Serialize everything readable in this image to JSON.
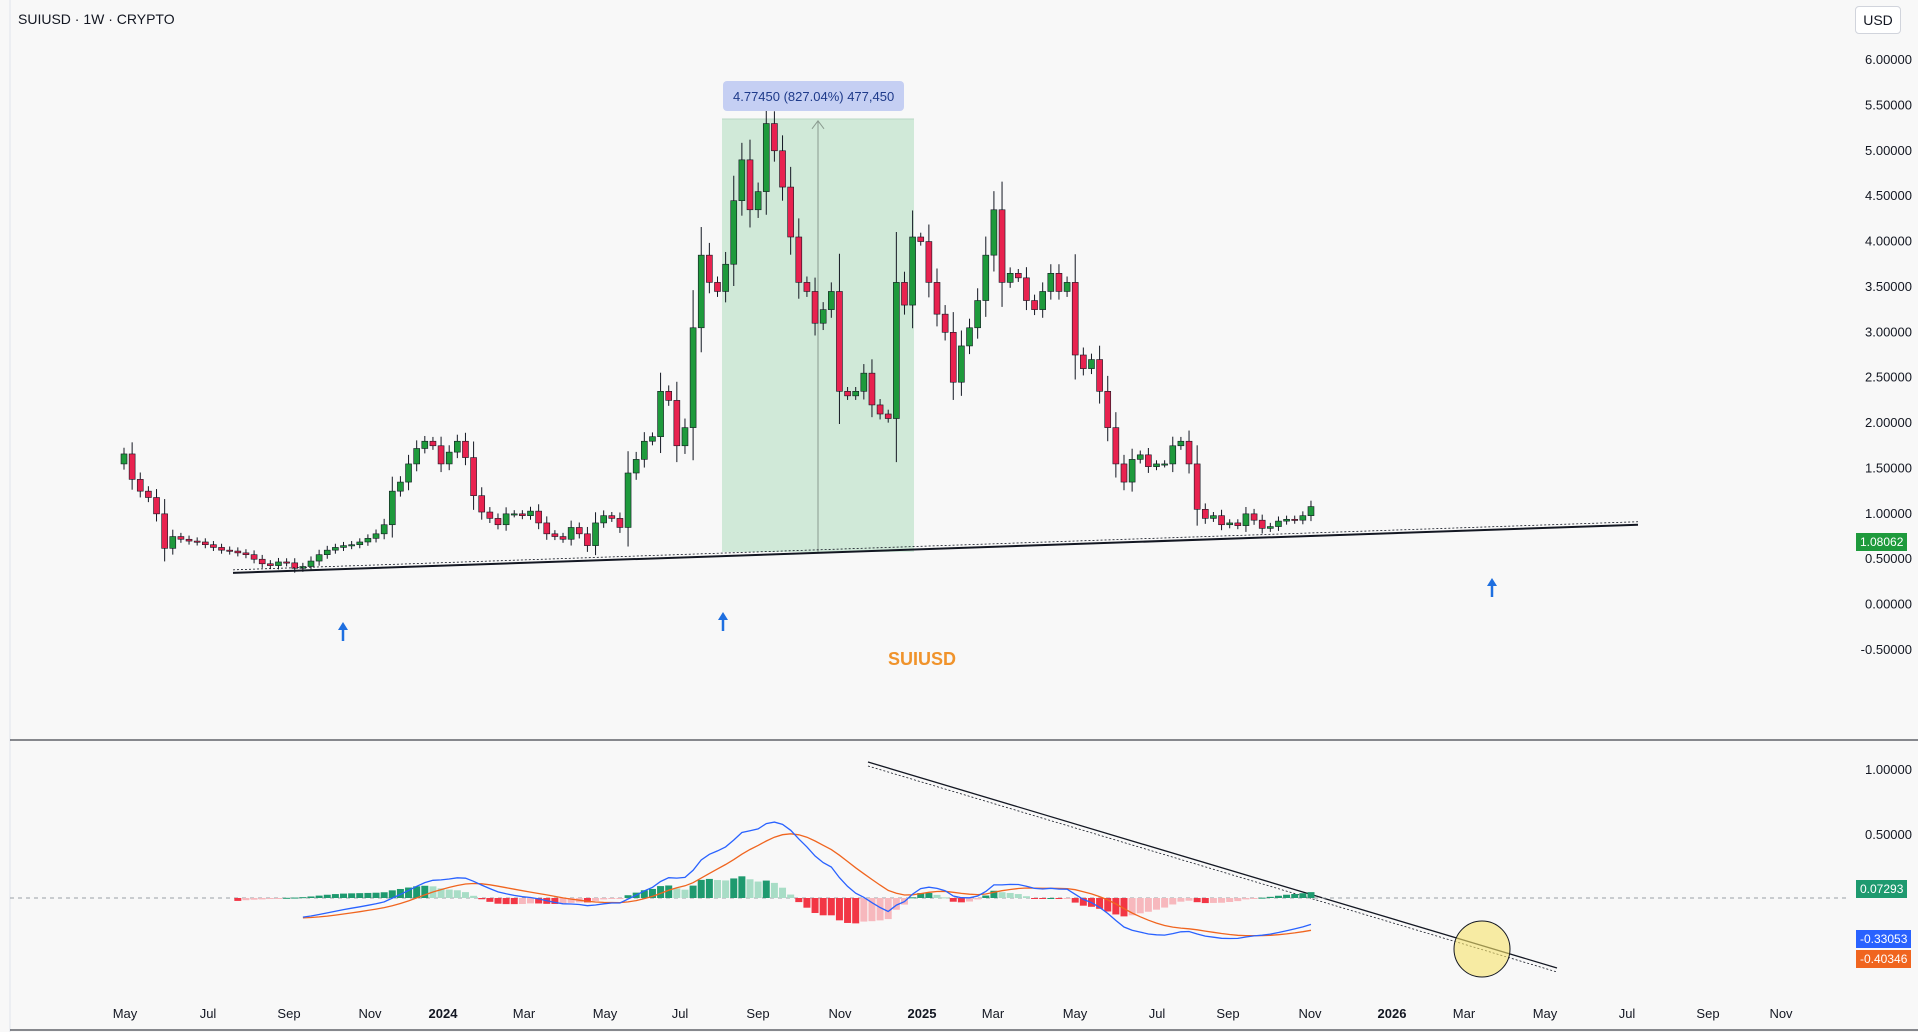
{
  "header": {
    "title": "SUIUSD · 1W · CRYPTO",
    "currency": "USD"
  },
  "watermark": "SUIUSD",
  "measure": {
    "label": "4.77450 (827.04%) 477,450"
  },
  "badges": {
    "price": "1.08062",
    "histogram": "0.07293",
    "macd": "-0.33053",
    "signal": "-0.40346"
  },
  "colors": {
    "up": "#1e9a3c",
    "down": "#e8224f",
    "macd": "#2962ff",
    "signal": "#f0651f",
    "hist_up_strong": "#1e9a6f",
    "hist_up_weak": "#a8ddc6",
    "hist_down_strong": "#f23645",
    "hist_down_weak": "#f7b8bd",
    "measure_fill": "#cde8d6",
    "badge_price": "#1e9a3c",
    "badge_hist": "#1e9a6f",
    "badge_macd": "#2962ff",
    "badge_signal": "#f0651f",
    "watermark": "#f0932b"
  },
  "price_axis": {
    "labels": [
      "6.00000",
      "5.50000",
      "5.00000",
      "4.50000",
      "4.00000",
      "3.50000",
      "3.00000",
      "2.50000",
      "2.00000",
      "1.50000",
      "1.00000",
      "0.50000",
      "0.00000",
      "-0.50000"
    ]
  },
  "macd_axis": {
    "labels": [
      "1.00000",
      "0.50000"
    ]
  },
  "time_axis": {
    "labels": [
      {
        "text": "May",
        "bold": false
      },
      {
        "text": "Jul",
        "bold": false
      },
      {
        "text": "Sep",
        "bold": false
      },
      {
        "text": "Nov",
        "bold": false
      },
      {
        "text": "2024",
        "bold": true
      },
      {
        "text": "Mar",
        "bold": false
      },
      {
        "text": "May",
        "bold": false
      },
      {
        "text": "Jul",
        "bold": false
      },
      {
        "text": "Sep",
        "bold": false
      },
      {
        "text": "Nov",
        "bold": false
      },
      {
        "text": "2025",
        "bold": true
      },
      {
        "text": "Mar",
        "bold": false
      },
      {
        "text": "May",
        "bold": false
      },
      {
        "text": "Jul",
        "bold": false
      },
      {
        "text": "Sep",
        "bold": false
      },
      {
        "text": "Nov",
        "bold": false
      },
      {
        "text": "2026",
        "bold": true
      },
      {
        "text": "Mar",
        "bold": false
      },
      {
        "text": "May",
        "bold": false
      },
      {
        "text": "Jul",
        "bold": false
      },
      {
        "text": "Sep",
        "bold": false
      },
      {
        "text": "Nov",
        "bold": false
      }
    ]
  },
  "chart_data": {
    "type": "candlestick",
    "symbol": "SUIUSD",
    "interval": "1W",
    "ylim": [
      -0.6,
      6.1
    ],
    "price_scale": "linear",
    "grid": false,
    "candles_close": [
      1.66,
      1.38,
      1.25,
      1.18,
      1.0,
      0.62,
      0.75,
      0.72,
      0.7,
      0.69,
      0.66,
      0.63,
      0.6,
      0.59,
      0.57,
      0.55,
      0.5,
      0.45,
      0.43,
      0.47,
      0.46,
      0.4,
      0.42,
      0.48,
      0.55,
      0.6,
      0.63,
      0.65,
      0.66,
      0.69,
      0.73,
      0.78,
      0.88,
      1.25,
      1.35,
      1.55,
      1.72,
      1.8,
      1.75,
      1.55,
      1.68,
      1.8,
      1.62,
      1.2,
      1.02,
      0.95,
      0.88,
      1.0,
      1.0,
      0.98,
      1.03,
      0.9,
      0.78,
      0.75,
      0.72,
      0.85,
      0.78,
      0.65,
      0.9,
      0.98,
      0.95,
      0.85,
      1.45,
      1.6,
      1.8,
      1.85,
      2.35,
      2.25,
      1.75,
      1.95,
      3.05,
      3.85,
      3.55,
      3.45,
      3.75,
      4.45,
      4.9,
      4.35,
      4.55,
      5.3,
      5.0,
      4.6,
      4.05,
      3.55,
      3.45,
      3.1,
      3.25,
      3.45,
      2.35,
      2.3,
      2.35,
      2.55,
      2.2,
      2.1,
      2.05,
      3.55,
      3.3,
      4.05,
      4.0,
      3.55,
      3.2,
      3.0,
      2.45,
      2.85,
      3.05,
      3.35,
      3.85,
      4.35,
      3.55,
      3.65,
      3.6,
      3.35,
      3.25,
      3.45,
      3.65,
      3.45,
      3.55,
      2.75,
      2.6,
      2.7,
      2.35,
      1.95,
      1.55,
      1.35,
      1.6,
      1.65,
      1.52,
      1.55,
      1.55,
      1.75,
      1.8,
      1.55,
      1.05,
      0.95,
      0.98,
      0.88,
      0.9,
      0.87,
      1.0,
      0.93,
      0.84,
      0.86,
      0.92,
      0.94,
      0.93,
      0.98,
      1.08
    ],
    "measure": {
      "price_change": 4.7745,
      "percent_change": 827.04,
      "volume": 477450
    },
    "support_trendline": {
      "from_price": 0.35,
      "to_price": 0.88
    },
    "macd": {
      "ylim": [
        -0.95,
        1.15
      ],
      "histogram_last": 0.07293,
      "macd_last": -0.33053,
      "signal_last": -0.40346
    }
  }
}
